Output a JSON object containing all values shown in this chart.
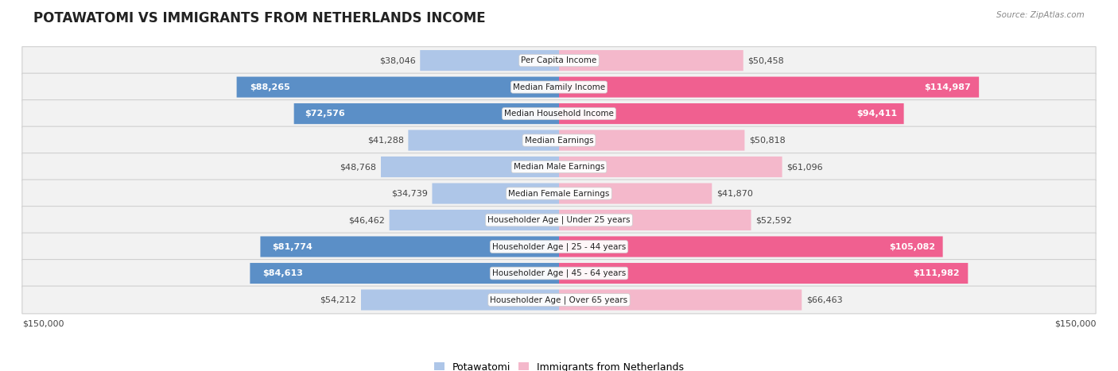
{
  "title": "POTAWATOMI VS IMMIGRANTS FROM NETHERLANDS INCOME",
  "source": "Source: ZipAtlas.com",
  "categories": [
    "Per Capita Income",
    "Median Family Income",
    "Median Household Income",
    "Median Earnings",
    "Median Male Earnings",
    "Median Female Earnings",
    "Householder Age | Under 25 years",
    "Householder Age | 25 - 44 years",
    "Householder Age | 45 - 64 years",
    "Householder Age | Over 65 years"
  ],
  "left_values": [
    38046,
    88265,
    72576,
    41288,
    48768,
    34739,
    46462,
    81774,
    84613,
    54212
  ],
  "right_values": [
    50458,
    114987,
    94411,
    50818,
    61096,
    41870,
    52592,
    105082,
    111982,
    66463
  ],
  "left_labels": [
    "$38,046",
    "$88,265",
    "$72,576",
    "$41,288",
    "$48,768",
    "$34,739",
    "$46,462",
    "$81,774",
    "$84,613",
    "$54,212"
  ],
  "right_labels": [
    "$50,458",
    "$114,987",
    "$94,411",
    "$50,818",
    "$61,096",
    "$41,870",
    "$52,592",
    "$105,082",
    "$111,982",
    "$66,463"
  ],
  "left_color_light": "#aec6e8",
  "left_color_dark": "#5b8fc7",
  "right_color_light": "#f4b8cb",
  "right_color_dark": "#f06090",
  "large_threshold": 70000,
  "max_value": 150000,
  "legend_left": "Potawatomi",
  "legend_right": "Immigrants from Netherlands",
  "background_color": "#ffffff",
  "row_bg_even": "#f0f0f0",
  "row_bg_odd": "#f8f8f8",
  "title_fontsize": 12,
  "label_fontsize": 8,
  "category_fontsize": 7.5,
  "axis_label_fontsize": 8
}
